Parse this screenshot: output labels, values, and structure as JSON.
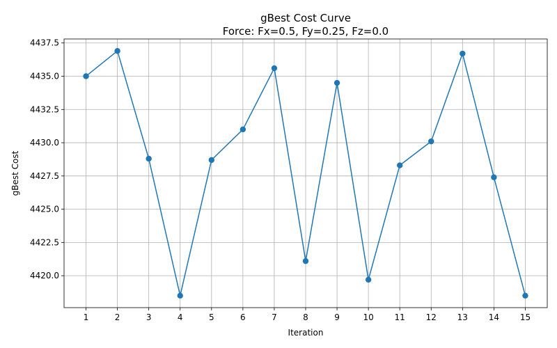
{
  "chart_data": {
    "type": "line",
    "title": "gBest Cost Curve",
    "subtitle": "Force: Fx=0.5, Fy=0.25, Fz=0.0",
    "xlabel": "Iteration",
    "ylabel": "gBest Cost",
    "x": [
      1,
      2,
      3,
      4,
      5,
      6,
      7,
      8,
      9,
      10,
      11,
      12,
      13,
      14,
      15
    ],
    "series": [
      {
        "values": [
          4435.0,
          4436.9,
          4428.8,
          4418.5,
          4428.7,
          4431.0,
          4435.6,
          4421.1,
          4434.5,
          4419.7,
          4428.3,
          4430.1,
          4436.7,
          4427.4,
          4418.5
        ],
        "color": "#1f77b4",
        "marker": "circle"
      }
    ],
    "xticks": [
      1,
      2,
      3,
      4,
      5,
      6,
      7,
      8,
      9,
      10,
      11,
      12,
      13,
      14,
      15
    ],
    "xtick_labels": [
      "1",
      "2",
      "3",
      "4",
      "5",
      "6",
      "7",
      "8",
      "9",
      "10",
      "11",
      "12",
      "13",
      "14",
      "15"
    ],
    "yticks": [
      4420.0,
      4422.5,
      4425.0,
      4427.5,
      4430.0,
      4432.5,
      4435.0,
      4437.5
    ],
    "ytick_labels": [
      "4420.0",
      "4422.5",
      "4425.0",
      "4427.5",
      "4430.0",
      "4432.5",
      "4435.0",
      "4437.5"
    ],
    "xlim": [
      0.3,
      15.7
    ],
    "ylim": [
      4417.6,
      4437.8
    ],
    "grid": true
  }
}
